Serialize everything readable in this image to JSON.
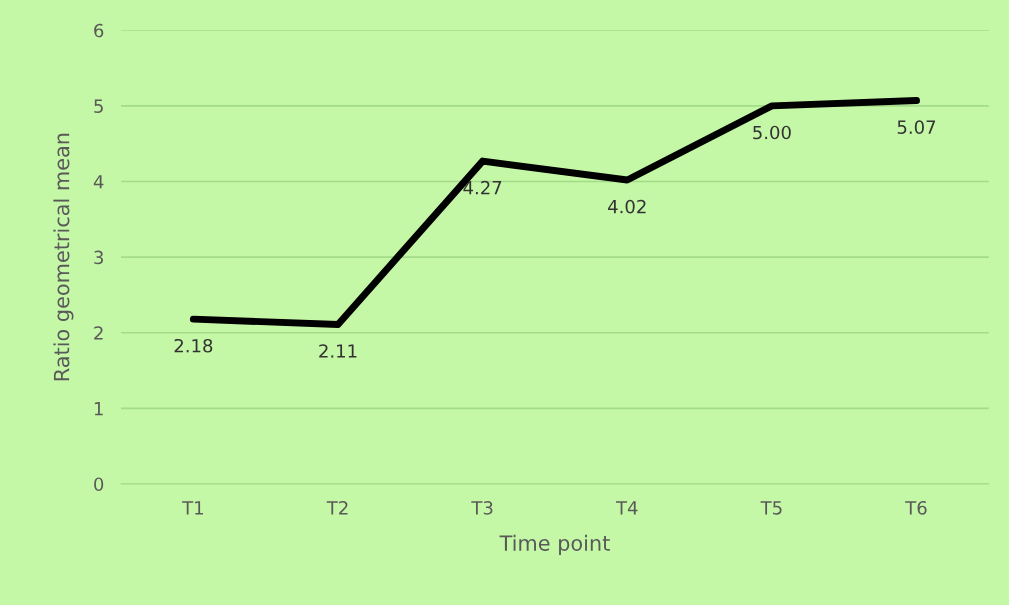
{
  "chart_data": {
    "type": "line",
    "xlabel": "Time point",
    "ylabel": "Ratio geometrical mean",
    "categories": [
      "T1",
      "T2",
      "T3",
      "T4",
      "T5",
      "T6"
    ],
    "series": [
      {
        "color": "#000000",
        "values": [
          2.18,
          2.11,
          4.27,
          4.02,
          5.0,
          5.07
        ]
      }
    ],
    "value_labels": [
      "2.18",
      "2.11",
      "4.27",
      "4.02",
      "5.00",
      "5.07"
    ],
    "ylim": [
      0,
      6
    ],
    "yticks": [
      0,
      1,
      2,
      3,
      4,
      5,
      6
    ],
    "grid": "y",
    "marker": "none",
    "line_style": "solid"
  }
}
